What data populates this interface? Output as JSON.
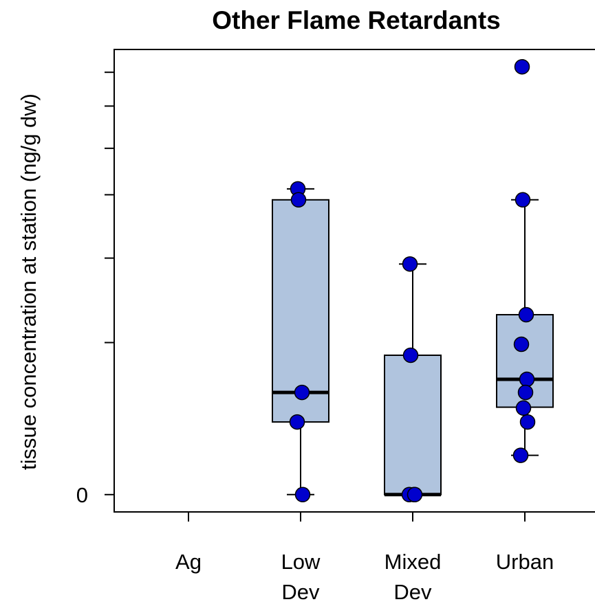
{
  "chart_data": {
    "type": "box",
    "title": "Other Flame Retardants",
    "y_label": "tissue concentration at station (ng/g dw)",
    "categories": [
      "Ag",
      "Low\nDev",
      "Mixed\nDev",
      "Urban"
    ],
    "ylim": [
      -4.1,
      105.4
    ],
    "yticks": [
      0,
      {
        "value": 36
      },
      {
        "value": 56
      },
      {
        "value": 71
      },
      {
        "value": 82
      },
      {
        "value": 92
      },
      {
        "value": 100
      }
    ],
    "box_color": "#b0c4de",
    "point_color": "#0000cd",
    "boxes": [
      null,
      {
        "whisker_low": 0,
        "q1": 17.2,
        "median": 24.2,
        "q3": 69.8,
        "whisker_high": 72.4
      },
      {
        "whisker_low": 0,
        "q1": 0,
        "median": 0,
        "q3": 33,
        "whisker_high": 54.6
      },
      {
        "whisker_low": 9.3,
        "q1": 20.7,
        "median": 27.3,
        "q3": 42.6,
        "whisker_high": 69.8
      }
    ],
    "points": [
      [],
      [
        72.4,
        69.8,
        24.2,
        17.2,
        0
      ],
      [
        54.6,
        33,
        0,
        0,
        0
      ],
      [
        101.3,
        69.8,
        42.6,
        35.6,
        27.3,
        24.2,
        20.5,
        17.2,
        9.3
      ]
    ]
  }
}
